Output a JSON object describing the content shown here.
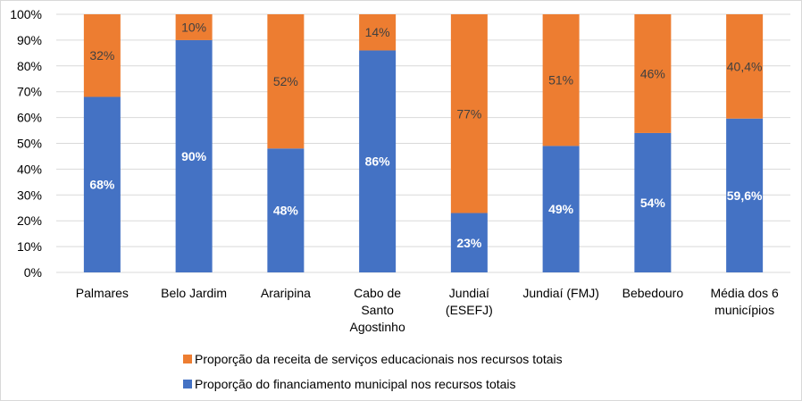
{
  "chart_data": {
    "type": "bar",
    "stacked": true,
    "title": "",
    "xlabel": "",
    "ylabel": "",
    "ylim": [
      0,
      100
    ],
    "yticks": [
      "0%",
      "10%",
      "20%",
      "30%",
      "40%",
      "50%",
      "60%",
      "70%",
      "80%",
      "90%",
      "100%"
    ],
    "grid": true,
    "legend_position": "bottom",
    "categories": [
      [
        "Palmares"
      ],
      [
        "Belo Jardim"
      ],
      [
        "Araripina"
      ],
      [
        "Cabo de",
        "Santo",
        "Agostinho"
      ],
      [
        "Jundiaí",
        "(ESEFJ)"
      ],
      [
        "Jundiaí (FMJ)"
      ],
      [
        "Bebedouro"
      ],
      [
        "Média dos 6",
        "municípios"
      ]
    ],
    "series": [
      {
        "name": "Proporção do financiamento municipal nos recursos totais",
        "color": "#4472C4",
        "label_color": "#ffffff",
        "values": [
          68,
          90,
          48,
          86,
          23,
          49,
          54,
          59.6
        ],
        "labels": [
          "68%",
          "90%",
          "48%",
          "86%",
          "23%",
          "49%",
          "54%",
          "59,6%"
        ]
      },
      {
        "name": "Proporção da receita de serviços educacionais nos recursos totais",
        "color": "#ED7D31",
        "label_color": "#404040",
        "values": [
          32,
          10,
          52,
          14,
          77,
          51,
          46,
          40.4
        ],
        "labels": [
          "32%",
          "10%",
          "52%",
          "14%",
          "77%",
          "51%",
          "46%",
          "40,4%"
        ]
      }
    ]
  }
}
